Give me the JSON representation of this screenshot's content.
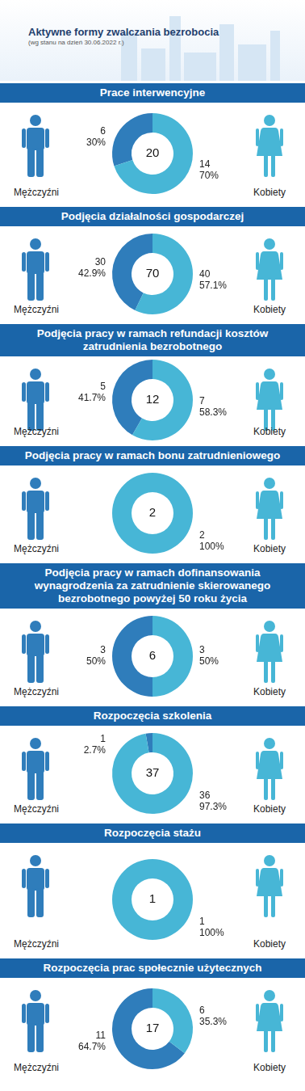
{
  "title": "Aktywne formy zwalczania bezrobocia",
  "subtitle": "(wg stanu na dzień 30.06.2022 r.)",
  "chart_data": [
    {
      "type": "doughnut",
      "title": "Prace interwencyjne",
      "categories": [
        "Mężczyźni",
        "Kobiety"
      ],
      "values": [
        6,
        14
      ],
      "percent_labels": [
        "30%",
        "70%"
      ],
      "total": 20,
      "colors": [
        "#2f7dbb",
        "#47b6d6"
      ],
      "data_labels": true
    },
    {
      "type": "doughnut",
      "title": "Podjęcia działalności gospodarczej",
      "categories": [
        "Mężczyźni",
        "Kobiety"
      ],
      "values": [
        30,
        40
      ],
      "percent_labels": [
        "42.9%",
        "57.1%"
      ],
      "total": 70,
      "colors": [
        "#2f7dbb",
        "#47b6d6"
      ],
      "data_labels": true
    },
    {
      "type": "doughnut",
      "title": "Podjęcia pracy w ramach refundacji kosztów zatrudnienia bezrobotnego",
      "categories": [
        "Mężczyźni",
        "Kobiety"
      ],
      "values": [
        5,
        7
      ],
      "percent_labels": [
        "41.7%",
        "58.3%"
      ],
      "total": 12,
      "colors": [
        "#2f7dbb",
        "#47b6d6"
      ],
      "data_labels": true
    },
    {
      "type": "doughnut",
      "title": "Podjęcia pracy w ramach bonu zatrudnieniowego",
      "categories": [
        "Mężczyźni",
        "Kobiety"
      ],
      "values": [
        0,
        2
      ],
      "percent_labels": [
        null,
        "100%"
      ],
      "total": 2,
      "colors": [
        "#2f7dbb",
        "#47b6d6"
      ],
      "data_labels": true
    },
    {
      "type": "doughnut",
      "title": "Podjęcia pracy w ramach dofinansowania wynagrodzenia za zatrudnienie skierowanego bezrobotnego powyżej 50 roku życia",
      "categories": [
        "Mężczyźni",
        "Kobiety"
      ],
      "values": [
        3,
        3
      ],
      "percent_labels": [
        "50%",
        "50%"
      ],
      "total": 6,
      "colors": [
        "#2f7dbb",
        "#47b6d6"
      ],
      "data_labels": true
    },
    {
      "type": "doughnut",
      "title": "Rozpoczęcia szkolenia",
      "categories": [
        "Mężczyźni",
        "Kobiety"
      ],
      "values": [
        1,
        36
      ],
      "percent_labels": [
        "2.7%",
        "97.3%"
      ],
      "total": 37,
      "colors": [
        "#2f7dbb",
        "#47b6d6"
      ],
      "data_labels": true
    },
    {
      "type": "doughnut",
      "title": "Rozpoczęcia stażu",
      "categories": [
        "Mężczyźni",
        "Kobiety"
      ],
      "values": [
        0,
        1
      ],
      "percent_labels": [
        null,
        "100%"
      ],
      "total": 1,
      "colors": [
        "#2f7dbb",
        "#47b6d6"
      ],
      "data_labels": true
    },
    {
      "type": "doughnut",
      "title": "Rozpoczęcia prac społecznie użytecznych",
      "categories": [
        "Mężczyźni",
        "Kobiety"
      ],
      "values": [
        11,
        6
      ],
      "percent_labels": [
        "64.7%",
        "35.3%"
      ],
      "total": 17,
      "colors": [
        "#2f7dbb",
        "#47b6d6"
      ],
      "data_labels": true
    }
  ]
}
